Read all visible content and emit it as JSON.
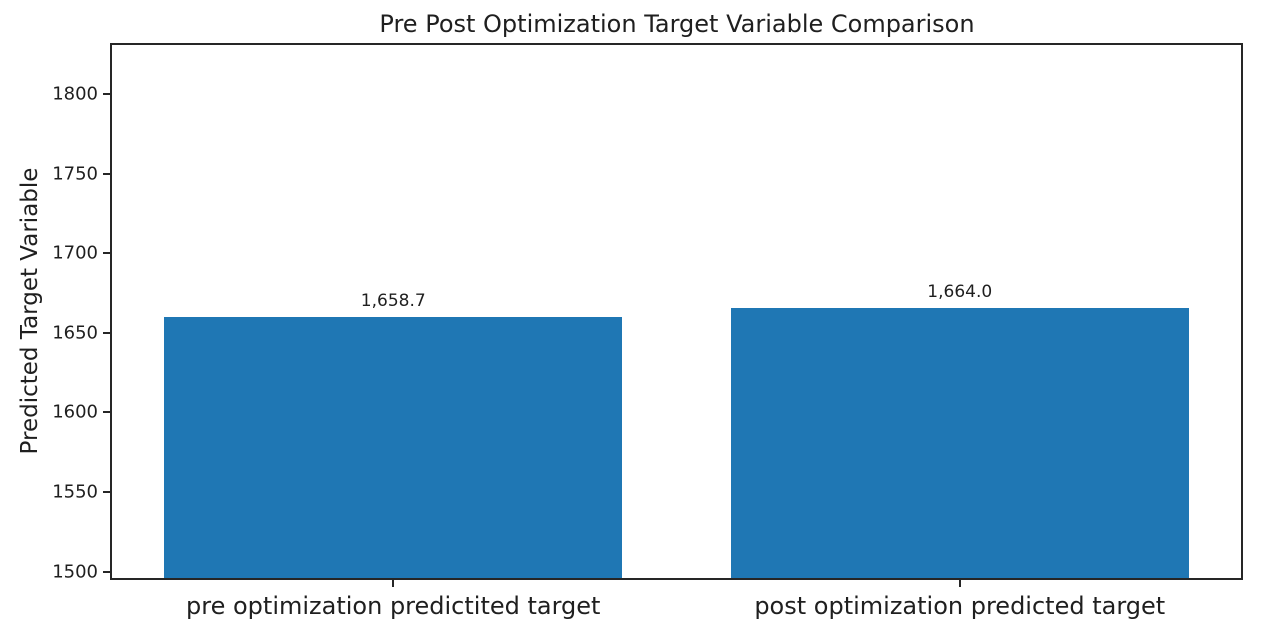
{
  "chart_data": {
    "type": "bar",
    "title": "Pre Post Optimization Target Variable Comparison",
    "xlabel": "",
    "ylabel": "Predicted Target Variable",
    "categories": [
      "pre optimization predictited target",
      "post optimization predicted target"
    ],
    "values": [
      1658.7,
      1664.0
    ],
    "value_labels": [
      "1,658.7",
      "1,664.0"
    ],
    "yticks": [
      1500,
      1550,
      1600,
      1650,
      1700,
      1750,
      1800
    ],
    "ylim": [
      1494.7,
      1832
    ],
    "bar_color": "#1f77b4",
    "axis_color": "#262626",
    "text_color": "#1f1f1f",
    "grid": false,
    "legend": null
  }
}
